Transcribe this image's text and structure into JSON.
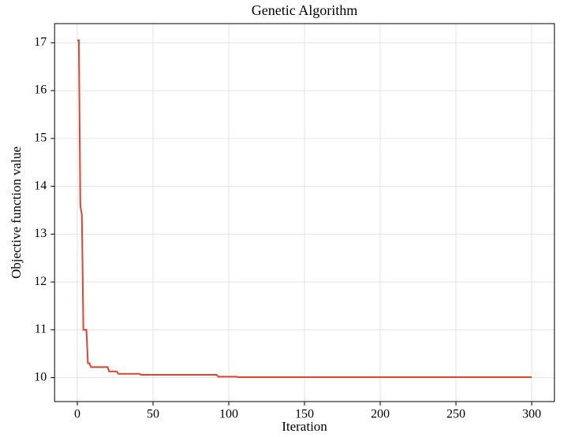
{
  "chart_data": {
    "type": "line",
    "title": "Genetic Algorithm",
    "xlabel": "Iteration",
    "ylabel": "Objective function value",
    "x": [
      0,
      1,
      2,
      3,
      4,
      5,
      6,
      7,
      8,
      9,
      20,
      21,
      26,
      27,
      41,
      42,
      92,
      93,
      105,
      106,
      300
    ],
    "series": [
      {
        "name": "Genetic Algorithm",
        "color": "#e0442f",
        "values": [
          17.05,
          17.05,
          13.6,
          13.4,
          11.0,
          11.0,
          11.0,
          10.3,
          10.3,
          10.22,
          10.22,
          10.13,
          10.13,
          10.08,
          10.08,
          10.06,
          10.06,
          10.02,
          10.02,
          10.01,
          10.01
        ]
      }
    ],
    "xlim": [
      -15,
      315
    ],
    "ylim": [
      9.5,
      17.4
    ],
    "xticks": [
      0,
      50,
      100,
      150,
      200,
      250,
      300
    ],
    "yticks": [
      10,
      11,
      12,
      13,
      14,
      15,
      16,
      17
    ],
    "grid": true
  }
}
